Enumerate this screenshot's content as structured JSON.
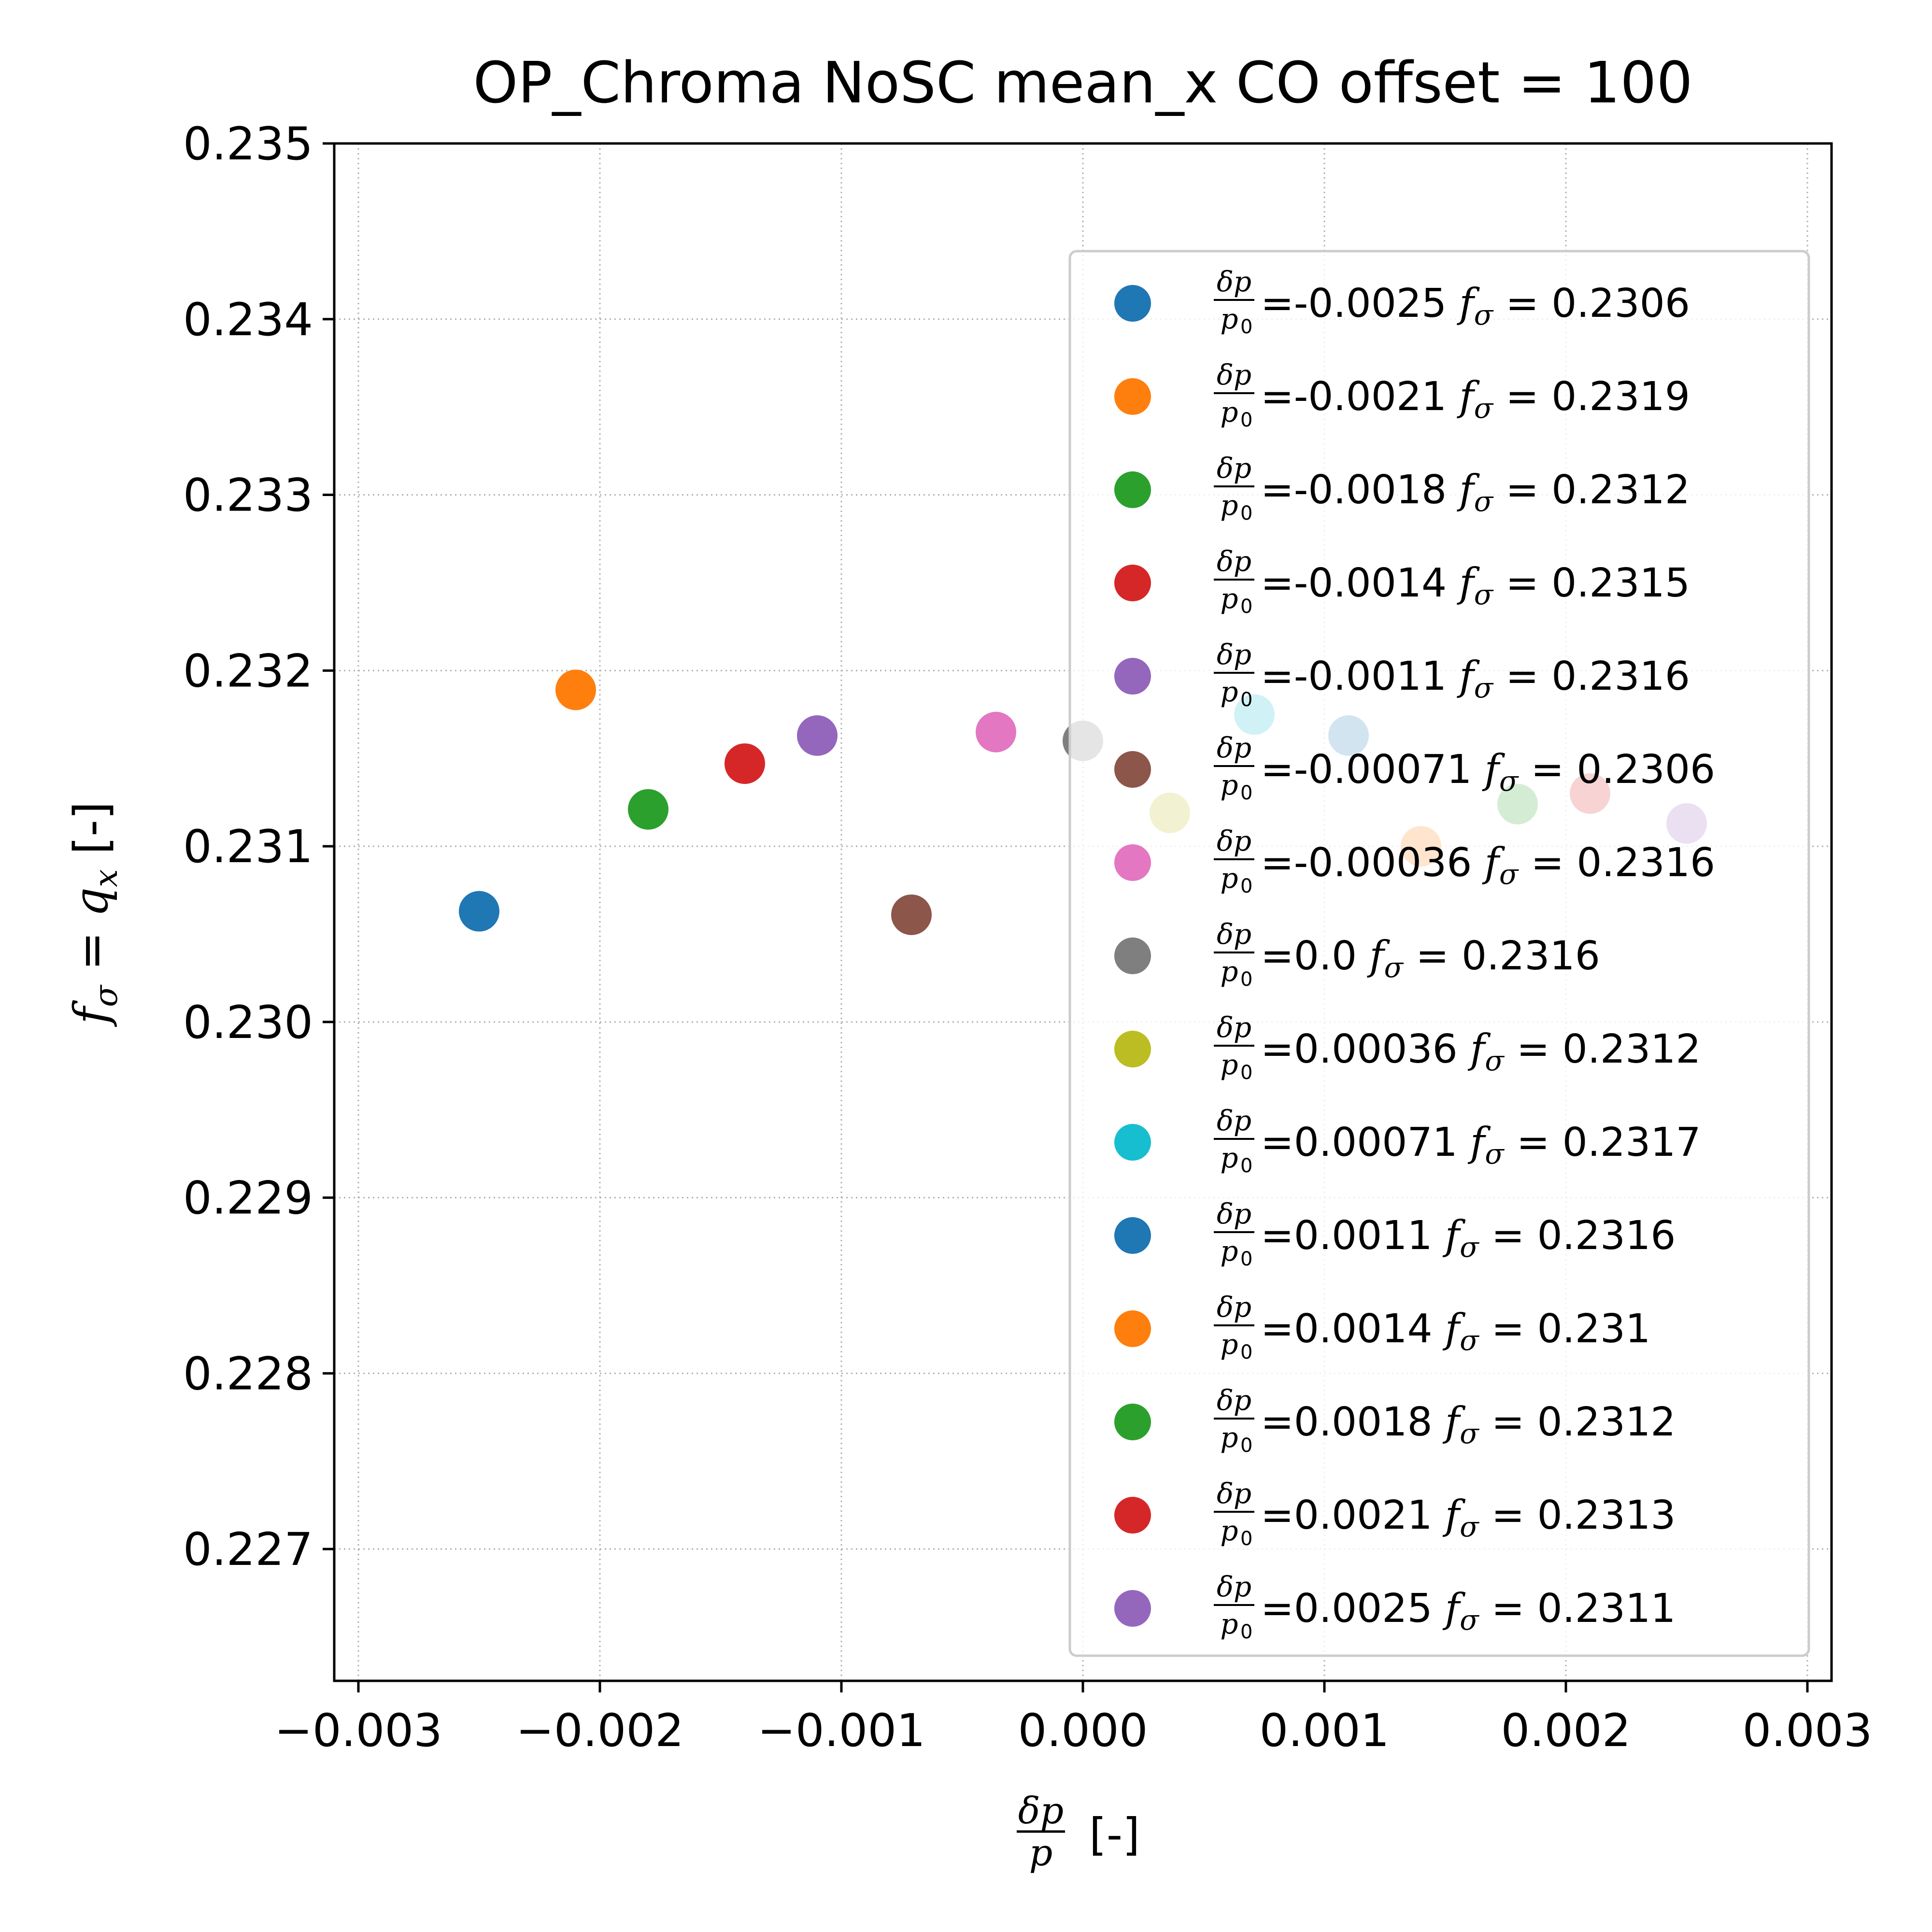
{
  "chart_data": {
    "type": "scatter",
    "title": "OP_Chroma NoSC mean_x CO offset = 100",
    "xlabel": {
      "numerator": "δp",
      "denominator": "p",
      "suffix": "[-]"
    },
    "ylabel": {
      "lhs": "f",
      "lhs_sub": "σ",
      "eq": " = ",
      "rhs": "q",
      "rhs_sub": "x",
      "suffix": " [-]"
    },
    "xlim": [
      -0.0031,
      0.0031
    ],
    "ylim": [
      0.22625,
      0.235
    ],
    "xticks": [
      -0.003,
      -0.002,
      -0.001,
      0.0,
      0.001,
      0.002,
      0.003
    ],
    "xtick_labels": [
      "−0.003",
      "−0.002",
      "−0.001",
      "0.000",
      "0.001",
      "0.002",
      "0.003"
    ],
    "yticks": [
      0.227,
      0.228,
      0.229,
      0.23,
      0.231,
      0.232,
      0.233,
      0.234,
      0.235
    ],
    "ytick_labels": [
      "0.227",
      "0.228",
      "0.229",
      "0.230",
      "0.231",
      "0.232",
      "0.233",
      "0.234",
      "0.235"
    ],
    "grid": true,
    "legend_position": "right",
    "legend_label_parts": {
      "frac_num": "δp",
      "frac_den": "p",
      "frac_den_sub": "0",
      "eq": " = ",
      "f": "f",
      "f_sub": "σ"
    },
    "series": [
      {
        "dp": "-0.0025",
        "fsigma": "0.2306",
        "x": -0.0025,
        "y": 0.23063,
        "color": "#1f77b4",
        "alpha": 1.0
      },
      {
        "dp": "-0.0021",
        "fsigma": "0.2319",
        "x": -0.0021,
        "y": 0.23189,
        "color": "#ff7f0e",
        "alpha": 1.0
      },
      {
        "dp": "-0.0018",
        "fsigma": "0.2312",
        "x": -0.0018,
        "y": 0.23121,
        "color": "#2ca02c",
        "alpha": 1.0
      },
      {
        "dp": "-0.0014",
        "fsigma": "0.2315",
        "x": -0.0014,
        "y": 0.23147,
        "color": "#d62728",
        "alpha": 1.0
      },
      {
        "dp": "-0.0011",
        "fsigma": "0.2316",
        "x": -0.0011,
        "y": 0.23163,
        "color": "#9467bd",
        "alpha": 1.0
      },
      {
        "dp": "-0.00071",
        "fsigma": "0.2306",
        "x": -0.00071,
        "y": 0.23061,
        "color": "#8c564b",
        "alpha": 1.0
      },
      {
        "dp": "-0.00036",
        "fsigma": "0.2316",
        "x": -0.00036,
        "y": 0.23165,
        "color": "#e377c2",
        "alpha": 1.0
      },
      {
        "dp": "0.0",
        "fsigma": "0.2316",
        "x": 0.0,
        "y": 0.2316,
        "color": "#7f7f7f",
        "alpha": 1.0
      },
      {
        "dp": "0.00036",
        "fsigma": "0.2312",
        "x": 0.00036,
        "y": 0.23119,
        "color": "#bcbd22",
        "alpha": 1.0
      },
      {
        "dp": "0.00071",
        "fsigma": "0.2317",
        "x": 0.00071,
        "y": 0.23175,
        "color": "#17becf",
        "alpha": 1.0
      },
      {
        "dp": "0.0011",
        "fsigma": "0.2316",
        "x": 0.0011,
        "y": 0.23163,
        "color": "#1f77b4",
        "alpha": 1.0
      },
      {
        "dp": "0.0014",
        "fsigma": "0.231",
        "x": 0.0014,
        "y": 0.231,
        "color": "#ff7f0e",
        "alpha": 1.0
      },
      {
        "dp": "0.0018",
        "fsigma": "0.2312",
        "x": 0.0018,
        "y": 0.23124,
        "color": "#2ca02c",
        "alpha": 1.0
      },
      {
        "dp": "0.0021",
        "fsigma": "0.2313",
        "x": 0.0021,
        "y": 0.2313,
        "color": "#d62728",
        "alpha": 1.0
      },
      {
        "dp": "0.0025",
        "fsigma": "0.2311",
        "x": 0.0025,
        "y": 0.23113,
        "color": "#9467bd",
        "alpha": 1.0
      }
    ]
  }
}
